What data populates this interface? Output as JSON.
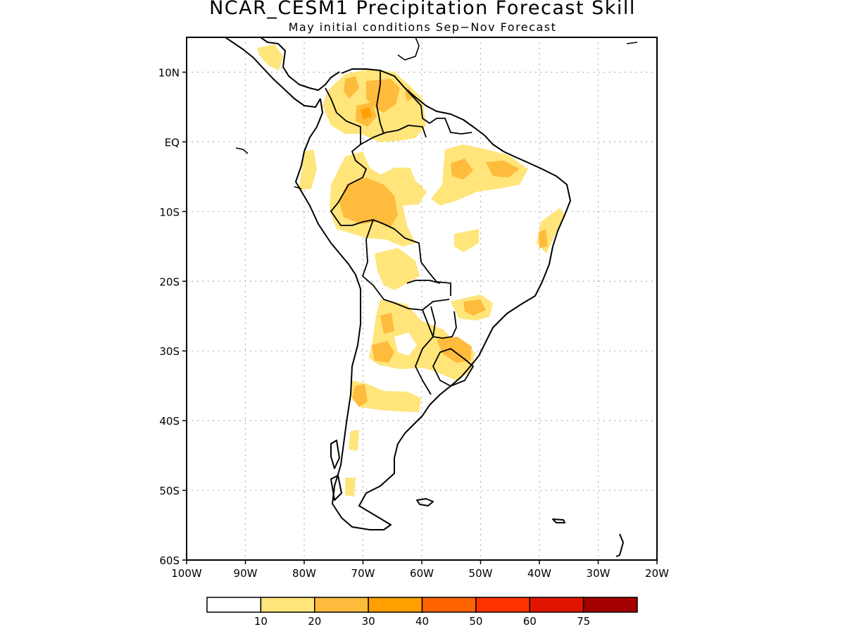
{
  "title": "NCAR_CESM1 Precipitation Forecast Skill",
  "subtitle": "May initial conditions  Sep−Nov Forecast",
  "map": {
    "lon_range": [
      -100,
      -20
    ],
    "lat_range": [
      -60,
      15
    ],
    "lon_ticks": [
      {
        "value": -100,
        "label": "100W"
      },
      {
        "value": -90,
        "label": "90W"
      },
      {
        "value": -80,
        "label": "80W"
      },
      {
        "value": -70,
        "label": "70W"
      },
      {
        "value": -60,
        "label": "60W"
      },
      {
        "value": -50,
        "label": "50W"
      },
      {
        "value": -40,
        "label": "40W"
      },
      {
        "value": -30,
        "label": "30W"
      },
      {
        "value": -20,
        "label": "20W"
      }
    ],
    "lat_ticks": [
      {
        "value": 10,
        "label": "10N"
      },
      {
        "value": 0,
        "label": "EQ"
      },
      {
        "value": -10,
        "label": "10S"
      },
      {
        "value": -20,
        "label": "20S"
      },
      {
        "value": -30,
        "label": "30S"
      },
      {
        "value": -40,
        "label": "40S"
      },
      {
        "value": -50,
        "label": "50S"
      },
      {
        "value": -60,
        "label": "60S"
      }
    ],
    "grid": "dotted"
  },
  "colorbar": {
    "levels": [
      "10",
      "20",
      "30",
      "40",
      "50",
      "60",
      "75"
    ],
    "colors": [
      "#ffffff",
      "#ffe57a",
      "#ffbb3c",
      "#ff9f00",
      "#ff6400",
      "#ff3200",
      "#e11400",
      "#a50000"
    ]
  }
}
